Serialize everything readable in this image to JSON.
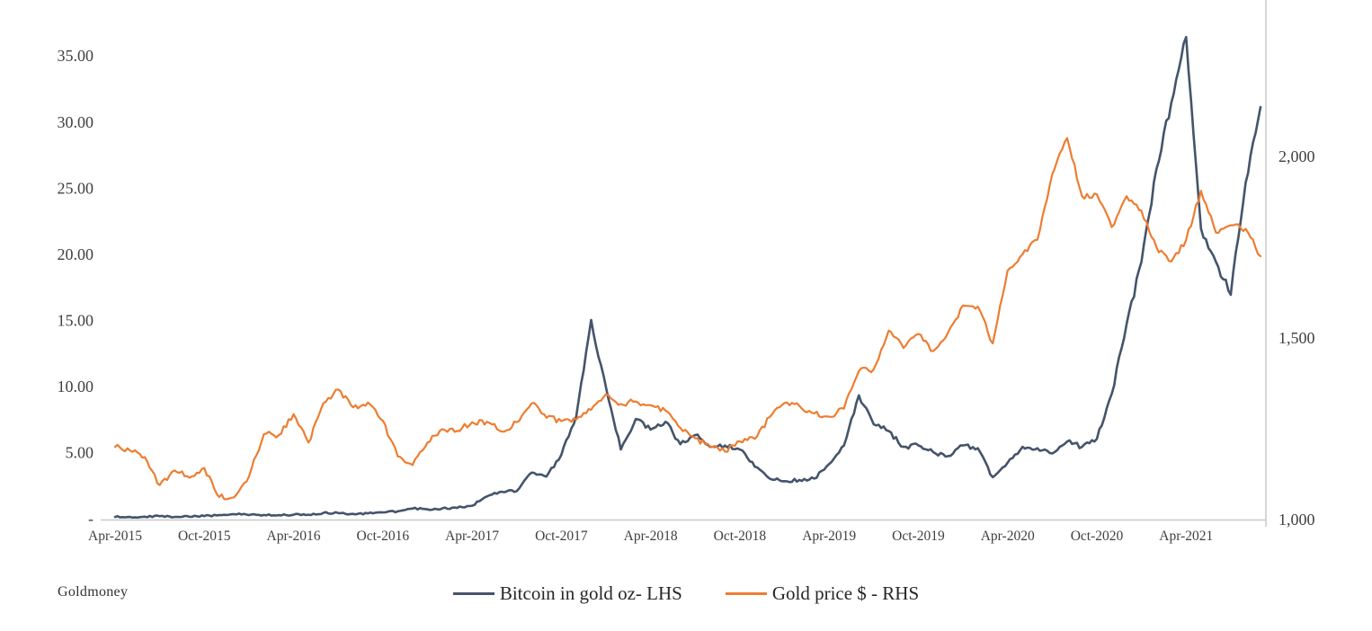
{
  "chart_data": {
    "type": "line",
    "title": "",
    "x_unit": "month",
    "x_start_label": "Apr-2015",
    "x_tick_labels": [
      "Apr-2015",
      "Oct-2015",
      "Apr-2016",
      "Oct-2016",
      "Apr-2017",
      "Oct-2017",
      "Apr-2018",
      "Oct-2018",
      "Apr-2019",
      "Oct-2019",
      "Apr-2020",
      "Oct-2020",
      "Apr-2021"
    ],
    "x_tick_indices": [
      0,
      6,
      12,
      18,
      24,
      30,
      36,
      42,
      48,
      54,
      60,
      66,
      72
    ],
    "left_axis": {
      "tick_labels": [
        "-",
        "5.00",
        "10.00",
        "15.00",
        "20.00",
        "25.00",
        "30.00",
        "35.00"
      ],
      "tick_values": [
        0,
        5,
        10,
        15,
        20,
        25,
        30,
        35
      ],
      "range": [
        0,
        39.3
      ]
    },
    "right_axis": {
      "tick_labels": [
        "1,000",
        "1,500",
        "2,000"
      ],
      "tick_values": [
        1000,
        1500,
        2000
      ],
      "range": [
        1000,
        2430
      ]
    },
    "grid": false,
    "legend_position": "bottom-center",
    "attribution": "Goldmoney",
    "series": [
      {
        "name": "Bitcoin in gold oz- LHS",
        "axis": "left",
        "color": "#44546A",
        "values": [
          0.2,
          0.2,
          0.22,
          0.25,
          0.2,
          0.21,
          0.26,
          0.33,
          0.41,
          0.34,
          0.35,
          0.33,
          0.36,
          0.37,
          0.5,
          0.49,
          0.43,
          0.46,
          0.54,
          0.62,
          0.83,
          0.77,
          0.85,
          0.88,
          1.05,
          1.75,
          2.1,
          2.15,
          3.55,
          3.25,
          4.9,
          7.8,
          15.1,
          10.0,
          5.3,
          7.6,
          6.8,
          7.4,
          5.7,
          6.4,
          5.5,
          5.6,
          5.3,
          4.0,
          3.1,
          2.9,
          3.0,
          3.1,
          4.2,
          5.6,
          9.4,
          7.2,
          6.7,
          5.5,
          5.6,
          5.1,
          4.8,
          5.6,
          5.4,
          3.2,
          4.3,
          5.5,
          5.4,
          5.0,
          5.9,
          5.5,
          6.1,
          9.5,
          14.8,
          19.5,
          26.5,
          31.5,
          36.5,
          22.0,
          19.5,
          17.0,
          25.5,
          31.2
        ]
      },
      {
        "name": "Gold price $ - RHS",
        "axis": "right",
        "color": "#ED7D31",
        "values": [
          1200,
          1190,
          1172,
          1095,
          1135,
          1115,
          1142,
          1062,
          1061,
          1118,
          1235,
          1232,
          1290,
          1212,
          1320,
          1358,
          1309,
          1322,
          1272,
          1174,
          1150,
          1212,
          1249,
          1244,
          1268,
          1269,
          1242,
          1268,
          1320,
          1280,
          1271,
          1275,
          1302,
          1345,
          1318,
          1325,
          1315,
          1300,
          1252,
          1224,
          1201,
          1187,
          1215,
          1222,
          1282,
          1321,
          1313,
          1292,
          1283,
          1305,
          1409,
          1414,
          1520,
          1472,
          1511,
          1464,
          1515,
          1589,
          1586,
          1485,
          1685,
          1730,
          1770,
          1950,
          2050,
          1890,
          1895,
          1805,
          1890,
          1850,
          1750,
          1710,
          1770,
          1905,
          1790,
          1810,
          1800,
          1725
        ]
      }
    ]
  }
}
